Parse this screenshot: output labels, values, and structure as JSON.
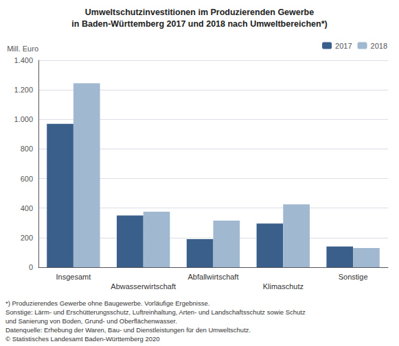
{
  "chart_data": {
    "type": "bar",
    "title": "Umweltschutzinvestitionen im Produzierenden Gewerbe",
    "subtitle": "in Baden-Württemberg 2017 und 2018 nach Umweltbereichen*)",
    "ylabel": "Mill. Euro",
    "categories": [
      "Insgesamt",
      "Abwasserwirtschaft",
      "Abfallwirtschaft",
      "Klimaschutz",
      "Sonstige"
    ],
    "series": [
      {
        "name": "2017",
        "color": "#3a5f8a",
        "values": [
          970,
          350,
          190,
          295,
          140
        ]
      },
      {
        "name": "2018",
        "color": "#a0b8d0",
        "values": [
          1245,
          375,
          315,
          425,
          130
        ]
      }
    ],
    "ylim": [
      0,
      1400
    ],
    "yticks": [
      0,
      200,
      400,
      600,
      800,
      {
        "value": 1000,
        "label": "1.000"
      },
      {
        "value": 1200,
        "label": "1.200"
      },
      {
        "value": 1400,
        "label": "1.400"
      }
    ],
    "grid": true,
    "legend": "upper right",
    "annotations": [
      "*) Produzierendes Gewerbe ohne Baugewerbe. Vorläufige Ergebnisse.",
      "Sonstige: Lärm- und Erschütterungsschutz, Luftreinhaltung, Arten- und Landschaftsschutz sowie Schutz",
      "und Sanierung von Boden, Grund- und Oberflächenwasser.",
      "Datenquelle: Erhebung der Waren, Bau- und Dienstleistungen für den Umweltschutz.",
      "© Statistisches Landesamt Baden-Württemberg 2020"
    ]
  }
}
